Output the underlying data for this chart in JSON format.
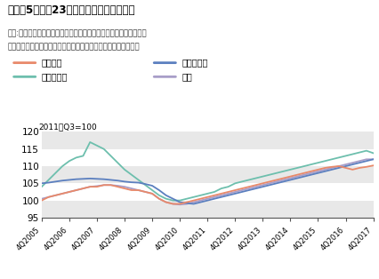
{
  "title1": "［図表5］",
  "title2": "東京23区のマンション賃料指数",
  "subtitle_line1": "出所:三井住友トラスト基礎研究所･アットホーム「マンション賃料",
  "subtitle_line2": "インデックス（総合･連鎖型）をもとにニッセイ基礎研究所作成",
  "note": "2011年Q3=100",
  "ylim": [
    95,
    121
  ],
  "yticks": [
    95,
    100,
    105,
    110,
    115,
    120
  ],
  "xtick_labels": [
    "4Q2005",
    "4Q2006",
    "4Q2007",
    "4Q2008",
    "4Q2009",
    "4Q2010",
    "4Q2011",
    "4Q2012",
    "4Q2013",
    "4Q2014",
    "4Q2015",
    "4Q2016",
    "4Q2017"
  ],
  "colors": {
    "single": "#E8896A",
    "compact": "#5B7FBF",
    "family": "#6DBFAD",
    "total": "#A89DC8"
  },
  "legend_labels": {
    "single": "シングル",
    "compact": "コンパクト",
    "family": "ファミリー",
    "total": "総合"
  },
  "single": [
    100.0,
    101.0,
    101.5,
    102.0,
    102.5,
    103.0,
    103.5,
    104.0,
    104.0,
    104.5,
    104.5,
    104.0,
    103.5,
    103.0,
    103.0,
    102.5,
    102.0,
    100.5,
    99.5,
    99.0,
    99.0,
    99.5,
    100.0,
    100.5,
    101.0,
    101.5,
    102.0,
    102.5,
    103.0,
    103.5,
    104.0,
    104.5,
    105.0,
    105.5,
    106.0,
    106.5,
    107.0,
    107.5,
    108.0,
    108.5,
    109.0,
    109.5,
    109.8,
    110.0,
    109.5,
    109.0,
    109.5,
    109.8,
    110.2
  ],
  "compact": [
    105.0,
    105.2,
    105.5,
    105.8,
    106.0,
    106.2,
    106.3,
    106.4,
    106.3,
    106.2,
    106.0,
    105.8,
    105.5,
    105.3,
    105.2,
    104.8,
    104.3,
    103.0,
    101.5,
    100.5,
    99.5,
    99.2,
    99.0,
    99.5,
    100.0,
    100.5,
    101.0,
    101.5,
    102.0,
    102.5,
    103.0,
    103.5,
    104.0,
    104.5,
    105.0,
    105.5,
    106.0,
    106.5,
    107.0,
    107.5,
    108.0,
    108.5,
    109.0,
    109.5,
    110.0,
    110.5,
    111.0,
    111.5,
    112.0
  ],
  "family": [
    104.0,
    106.0,
    108.0,
    110.0,
    111.5,
    112.5,
    113.0,
    117.0,
    116.0,
    115.0,
    113.0,
    111.0,
    109.0,
    107.5,
    106.0,
    104.5,
    103.0,
    101.5,
    100.5,
    100.0,
    100.0,
    100.5,
    101.0,
    101.5,
    102.0,
    102.5,
    103.5,
    104.0,
    105.0,
    105.5,
    106.0,
    106.5,
    107.0,
    107.5,
    108.0,
    108.5,
    109.0,
    109.5,
    110.0,
    110.5,
    111.0,
    111.5,
    112.0,
    112.5,
    113.0,
    113.5,
    114.0,
    114.5,
    113.8
  ],
  "total": [
    100.5,
    101.0,
    101.5,
    102.0,
    102.5,
    103.0,
    103.5,
    104.0,
    104.2,
    104.5,
    104.5,
    104.3,
    104.0,
    103.5,
    103.0,
    102.5,
    102.0,
    100.5,
    99.5,
    99.0,
    98.8,
    99.0,
    99.5,
    100.0,
    100.5,
    101.0,
    101.5,
    102.0,
    102.5,
    103.0,
    103.5,
    104.0,
    104.5,
    105.0,
    105.5,
    106.0,
    106.5,
    107.0,
    107.5,
    108.0,
    108.5,
    109.0,
    109.5,
    110.0,
    110.5,
    111.0,
    111.5,
    112.0,
    112.0
  ]
}
